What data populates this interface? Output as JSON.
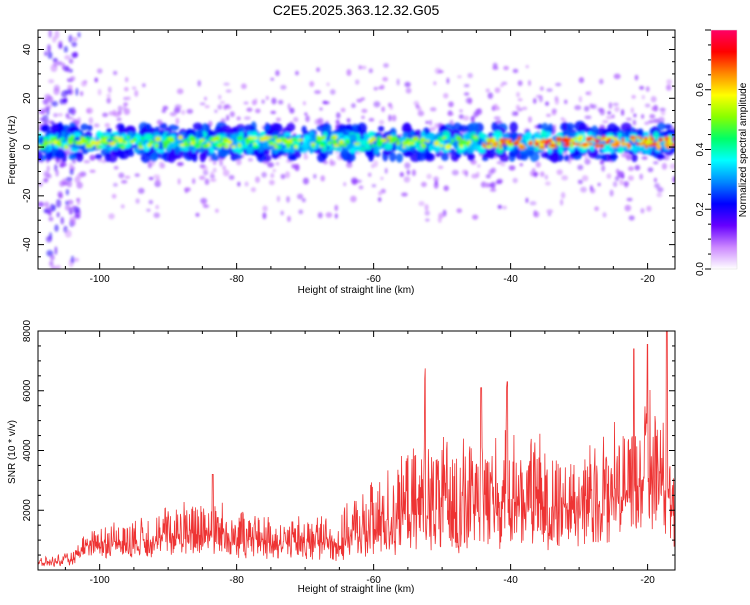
{
  "title": "C2E5.2025.363.12.32.G05",
  "chart_data": [
    {
      "type": "heatmap",
      "name": "spectrogram",
      "xlabel": "Height of straight line (km)",
      "ylabel": "Frequency (Hz)",
      "xlim": [
        -109,
        -16
      ],
      "ylim": [
        -50,
        48
      ],
      "xticks": [
        -100,
        -80,
        -60,
        -40,
        -20
      ],
      "yticks": [
        40,
        20,
        0,
        -20,
        -40
      ],
      "band_center_hz": 2,
      "band_halfwidth_hz": 6,
      "colorbar": {
        "label": "Normalized spectral amplitude",
        "range": [
          0.0,
          0.8
        ],
        "ticks": [
          0.0,
          0.2,
          0.4,
          0.6
        ],
        "colors": [
          "#ffffff",
          "#cc88ff",
          "#6600ff",
          "#0000ff",
          "#0088ff",
          "#00ffff",
          "#00ff66",
          "#88ff00",
          "#ffff00",
          "#ff8800",
          "#ff0000",
          "#ff0066"
        ]
      }
    },
    {
      "type": "line",
      "name": "snr",
      "xlabel": "Height of straight line (km)",
      "ylabel": "SNR (10 * v/v)",
      "xlim": [
        -109,
        -16
      ],
      "ylim": [
        0,
        8000
      ],
      "xticks": [
        -100,
        -80,
        -60,
        -40,
        -20
      ],
      "yticks": [
        2000,
        4000,
        6000,
        8000
      ],
      "color": "#ee3333",
      "envelope": [
        {
          "x": -109,
          "low": 100,
          "high": 400
        },
        {
          "x": -104,
          "low": 150,
          "high": 600
        },
        {
          "x": -102,
          "low": 400,
          "high": 1400
        },
        {
          "x": -95,
          "low": 400,
          "high": 1800
        },
        {
          "x": -85,
          "low": 500,
          "high": 2600
        },
        {
          "x": -75,
          "low": 300,
          "high": 1800
        },
        {
          "x": -65,
          "low": 300,
          "high": 2000
        },
        {
          "x": -58,
          "low": 400,
          "high": 3500
        },
        {
          "x": -52,
          "low": 500,
          "high": 4500
        },
        {
          "x": -45,
          "low": 600,
          "high": 4700
        },
        {
          "x": -40,
          "low": 700,
          "high": 5000
        },
        {
          "x": -30,
          "low": 600,
          "high": 4200
        },
        {
          "x": -22,
          "low": 900,
          "high": 5500
        },
        {
          "x": -18,
          "low": 1200,
          "high": 6500
        },
        {
          "x": -16,
          "low": 300,
          "high": 3000
        }
      ],
      "peaks": [
        {
          "x": -52.5,
          "y": 6750
        },
        {
          "x": -44.3,
          "y": 6100
        },
        {
          "x": -40.5,
          "y": 6300
        },
        {
          "x": -22,
          "y": 7400
        },
        {
          "x": -20,
          "y": 7550
        },
        {
          "x": -17.2,
          "y": 8000
        },
        {
          "x": -83.5,
          "y": 3200
        }
      ]
    }
  ]
}
